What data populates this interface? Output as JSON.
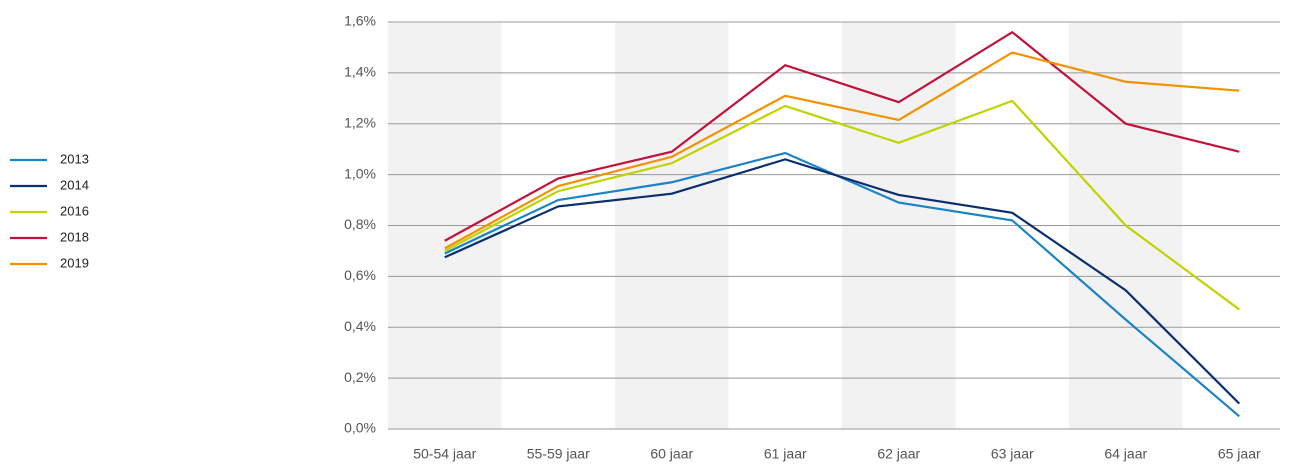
{
  "chart_data": {
    "type": "line",
    "categories": [
      "50-54 jaar",
      "55-59 jaar",
      "60 jaar",
      "61 jaar",
      "62 jaar",
      "63 jaar",
      "64 jaar",
      "65 jaar"
    ],
    "series": [
      {
        "name": "2013",
        "color": "#1a84c7",
        "values": [
          0.69,
          0.9,
          0.97,
          1.085,
          0.89,
          0.82,
          0.43,
          0.05
        ]
      },
      {
        "name": "2014",
        "color": "#0a2f6e",
        "values": [
          0.675,
          0.875,
          0.925,
          1.06,
          0.92,
          0.85,
          0.545,
          0.1
        ]
      },
      {
        "name": "2016",
        "color": "#bfd400",
        "values": [
          0.7,
          0.935,
          1.045,
          1.27,
          1.125,
          1.29,
          0.8,
          0.47
        ]
      },
      {
        "name": "2018",
        "color": "#c0123c",
        "values": [
          0.74,
          0.985,
          1.09,
          1.43,
          1.285,
          1.56,
          1.2,
          1.09
        ]
      },
      {
        "name": "2019",
        "color": "#f39200",
        "values": [
          0.71,
          0.955,
          1.07,
          1.31,
          1.215,
          1.48,
          1.365,
          1.33
        ]
      }
    ],
    "ylim": [
      0,
      1.6
    ],
    "yticks": [
      {
        "value": 0,
        "label": "0,0%"
      },
      {
        "value": 0.2,
        "label": "0,2%"
      },
      {
        "value": 0.4,
        "label": "0,4%"
      },
      {
        "value": 0.6,
        "label": "0,6%"
      },
      {
        "value": 0.8,
        "label": "0,8%"
      },
      {
        "value": 1.0,
        "label": "1,0%"
      },
      {
        "value": 1.2,
        "label": "1,2%"
      },
      {
        "value": 1.4,
        "label": "1,4%"
      },
      {
        "value": 1.6,
        "label": "1,6%"
      }
    ],
    "grid": true,
    "legend": "left"
  }
}
